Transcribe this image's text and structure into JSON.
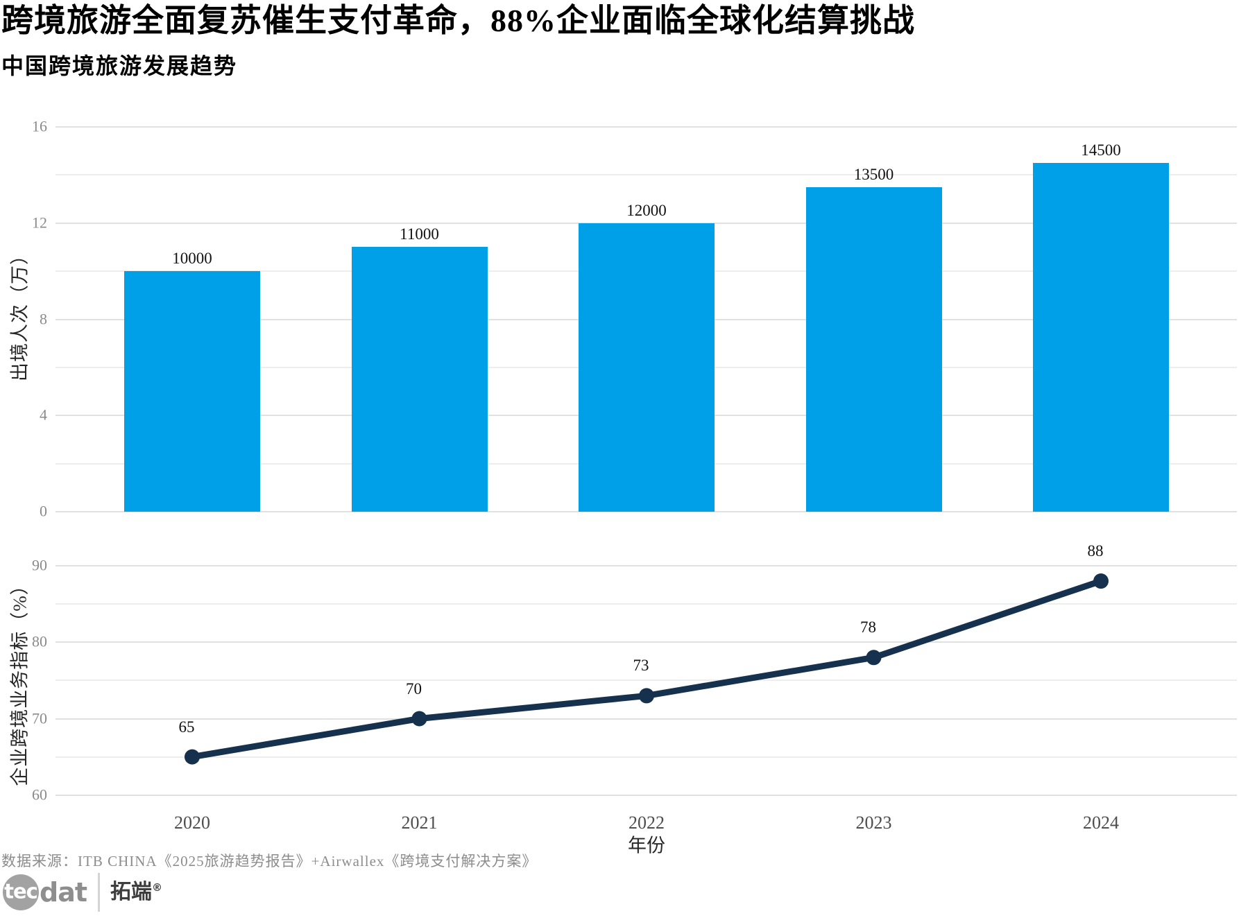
{
  "page": {
    "title": "跨境旅游全面复苏催生支付革命，88%企业面临全球化结算挑战",
    "subtitle": "中国跨境旅游发展趋势",
    "source": "数据来源：ITB CHINA《2025旅游趋势报告》+Airwallex《跨境支付解决方案》"
  },
  "chart_data": [
    {
      "type": "bar",
      "panel": "top",
      "categories": [
        "2020",
        "2021",
        "2022",
        "2023",
        "2024"
      ],
      "values": [
        10000,
        11000,
        12000,
        13500,
        14500
      ],
      "bar_labels": [
        "10000",
        "11000",
        "12000",
        "13500",
        "14500"
      ],
      "ylabel": "出境人次（万）",
      "yticks": [
        0,
        4,
        8,
        12,
        16
      ],
      "y_minor_ticks": [
        2,
        6,
        10,
        14
      ],
      "ylim": [
        0,
        16
      ],
      "grid": true,
      "legend": "none"
    },
    {
      "type": "line",
      "panel": "bottom",
      "categories": [
        "2020",
        "2021",
        "2022",
        "2023",
        "2024"
      ],
      "values": [
        65,
        70,
        73,
        78,
        88
      ],
      "point_labels": [
        "65",
        "70",
        "73",
        "78",
        "88"
      ],
      "xlabel": "年份",
      "ylabel": "企业跨境业务指标（%）",
      "yticks": [
        60,
        70,
        80,
        90
      ],
      "y_minor_ticks": [
        65,
        75,
        85
      ],
      "ylim": [
        60,
        92
      ],
      "grid": true,
      "marker": "circle",
      "legend": "none"
    }
  ],
  "colors": {
    "bar": "#00a0e9",
    "line": "#15314d",
    "marker": "#15314d",
    "grid_major": "#e1e1e1",
    "grid_minor": "#ededed",
    "ytick_text": "#8a8a8a",
    "xtick_text": "#4d4d4d",
    "value_label": "#111111",
    "title_text": "#000000",
    "axis_title_text": "#262626",
    "source_text": "#8c8c8c",
    "logo_circle": "#a2a2a2",
    "logo_wordmark": "#8e8e8e",
    "logo_brand": "#3e3e3e"
  },
  "logo": {
    "circle_text": "tec",
    "wordmark_rest": "dat",
    "brand_cn": "拓端",
    "registered": "®"
  }
}
